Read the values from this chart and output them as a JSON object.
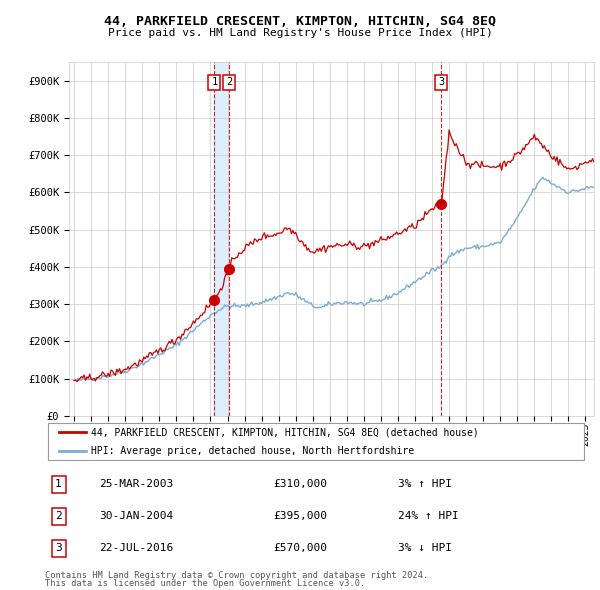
{
  "title": "44, PARKFIELD CRESCENT, KIMPTON, HITCHIN, SG4 8EQ",
  "subtitle": "Price paid vs. HM Land Registry's House Price Index (HPI)",
  "ylabel_ticks": [
    "£0",
    "£100K",
    "£200K",
    "£300K",
    "£400K",
    "£500K",
    "£600K",
    "£700K",
    "£800K",
    "£900K"
  ],
  "ytick_vals": [
    0,
    100000,
    200000,
    300000,
    400000,
    500000,
    600000,
    700000,
    800000,
    900000
  ],
  "xlim_start": 1994.7,
  "xlim_end": 2025.5,
  "ylim_max": 950000,
  "transactions": [
    {
      "num": 1,
      "date_num": 2003.23,
      "price": 310000,
      "label": "1"
    },
    {
      "num": 2,
      "date_num": 2004.08,
      "price": 395000,
      "label": "2"
    },
    {
      "num": 3,
      "date_num": 2016.55,
      "price": 570000,
      "label": "3"
    }
  ],
  "legend_line1": "44, PARKFIELD CRESCENT, KIMPTON, HITCHIN, SG4 8EQ (detached house)",
  "legend_line2": "HPI: Average price, detached house, North Hertfordshire",
  "table_entries": [
    {
      "num": "1",
      "date": "25-MAR-2003",
      "price": "£310,000",
      "change": "3% ↑ HPI"
    },
    {
      "num": "2",
      "date": "30-JAN-2004",
      "price": "£395,000",
      "change": "24% ↑ HPI"
    },
    {
      "num": "3",
      "date": "22-JUL-2016",
      "price": "£570,000",
      "change": "3% ↓ HPI"
    }
  ],
  "footer1": "Contains HM Land Registry data © Crown copyright and database right 2024.",
  "footer2": "This data is licensed under the Open Government Licence v3.0.",
  "line_color_red": "#cc0000",
  "line_color_blue": "#7aadd4",
  "vline_color": "#cc0000",
  "vband_color": "#ddeeff",
  "box_color": "#cc0000",
  "background_color": "#ffffff",
  "grid_color": "#cccccc",
  "hpi_anchors_x": [
    1995.0,
    1996.0,
    1997.0,
    1998.0,
    1999.0,
    2000.0,
    2001.0,
    2002.0,
    2003.0,
    2003.5,
    2004.0,
    2005.0,
    2006.0,
    2007.0,
    2007.5,
    2008.0,
    2008.5,
    2009.0,
    2009.5,
    2010.0,
    2011.0,
    2012.0,
    2013.0,
    2014.0,
    2015.0,
    2016.0,
    2016.5,
    2017.0,
    2018.0,
    2019.0,
    2020.0,
    2021.0,
    2022.0,
    2022.5,
    2023.0,
    2024.0,
    2025.0,
    2025.5
  ],
  "hpi_anchors_y": [
    95000,
    100000,
    108000,
    120000,
    140000,
    165000,
    190000,
    230000,
    270000,
    285000,
    295000,
    295000,
    305000,
    320000,
    330000,
    325000,
    310000,
    295000,
    290000,
    300000,
    305000,
    300000,
    310000,
    330000,
    360000,
    390000,
    400000,
    430000,
    450000,
    455000,
    465000,
    530000,
    610000,
    640000,
    625000,
    600000,
    610000,
    615000
  ],
  "prop_anchors_x": [
    1995.0,
    1996.0,
    1997.0,
    1998.0,
    1999.0,
    2000.0,
    2001.0,
    2002.0,
    2003.0,
    2003.23,
    2003.5,
    2004.0,
    2004.08,
    2004.5,
    2005.0,
    2006.0,
    2007.0,
    2007.5,
    2008.0,
    2008.5,
    2009.0,
    2010.0,
    2011.0,
    2012.0,
    2013.0,
    2014.0,
    2015.0,
    2016.0,
    2016.55,
    2017.0,
    2017.5,
    2018.0,
    2019.0,
    2020.0,
    2021.0,
    2022.0,
    2023.0,
    2024.0,
    2025.0,
    2025.5
  ],
  "prop_anchors_y": [
    95000,
    102000,
    112000,
    125000,
    148000,
    175000,
    205000,
    250000,
    300000,
    310000,
    335000,
    380000,
    395000,
    430000,
    450000,
    480000,
    490000,
    505000,
    490000,
    460000,
    440000,
    455000,
    460000,
    455000,
    470000,
    490000,
    510000,
    555000,
    570000,
    760000,
    720000,
    680000,
    670000,
    670000,
    700000,
    750000,
    700000,
    660000,
    680000,
    690000
  ]
}
